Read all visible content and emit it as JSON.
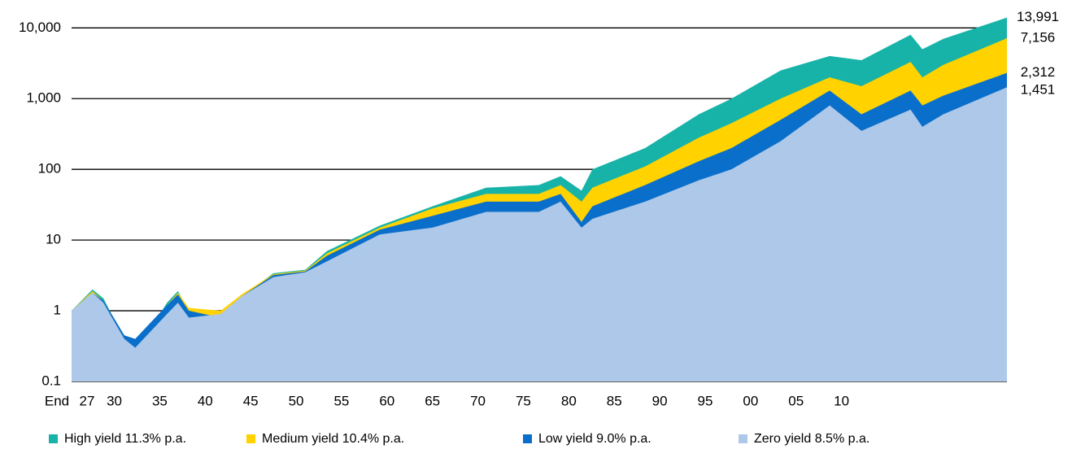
{
  "chart_data": {
    "type": "area",
    "log_y": true,
    "grid": true,
    "x_prefix": "End",
    "x": [
      1925.3,
      1927.6,
      1928.8,
      1931.1,
      1932.3,
      1935.8,
      1937.0,
      1938.2,
      1941.7,
      1944.0,
      1947.5,
      1951.0,
      1953.4,
      1959.2,
      1965.0,
      1970.9,
      1976.7,
      1979.1,
      1981.4,
      1982.6,
      1988.4,
      1994.3,
      1997.9,
      2003.3,
      2008.7,
      2012.2,
      2017.6,
      2018.9,
      2021.2,
      2028.2
    ],
    "xlim": [
      1925.3,
      2028.2
    ],
    "xticks": [
      {
        "value": 1927,
        "label": "27"
      },
      {
        "value": 1930,
        "label": "30"
      },
      {
        "value": 1935,
        "label": "35"
      },
      {
        "value": 1940,
        "label": "40"
      },
      {
        "value": 1945,
        "label": "45"
      },
      {
        "value": 1950,
        "label": "50"
      },
      {
        "value": 1955,
        "label": "55"
      },
      {
        "value": 1960,
        "label": "60"
      },
      {
        "value": 1965,
        "label": "65"
      },
      {
        "value": 1970,
        "label": "70"
      },
      {
        "value": 1975,
        "label": "75"
      },
      {
        "value": 1980,
        "label": "80"
      },
      {
        "value": 1985,
        "label": "85"
      },
      {
        "value": 1990,
        "label": "90"
      },
      {
        "value": 1995,
        "label": "95"
      },
      {
        "value": 2000,
        "label": "00"
      },
      {
        "value": 2005,
        "label": "05"
      },
      {
        "value": 2010,
        "label": "10"
      }
    ],
    "ylim": [
      0.1,
      15000
    ],
    "yticks": [
      0.1,
      1,
      10,
      100,
      {
        "value": 1000,
        "label": "1,000"
      },
      {
        "value": 10000,
        "label": "10,000"
      }
    ],
    "series": [
      {
        "name": "High yield 11.3% p.a.",
        "color": "#17b3a8",
        "end_label": "13,991",
        "values": [
          1,
          2,
          1.5,
          0.4,
          0.25,
          1.3,
          1.9,
          1.0,
          0.9,
          1.6,
          3.4,
          3.8,
          7,
          16,
          30,
          55,
          60,
          80,
          50,
          100,
          200,
          600,
          1000,
          2500,
          4000,
          3500,
          8000,
          5000,
          7000,
          13991
        ]
      },
      {
        "name": "Medium yield 10.4% p.a.",
        "color": "#ffd200",
        "end_label": "7,156",
        "values": [
          1,
          1.9,
          1.4,
          0.45,
          0.35,
          1.2,
          1.8,
          1.1,
          1.0,
          1.7,
          3.3,
          3.7,
          6.5,
          15,
          28,
          45,
          45,
          60,
          35,
          55,
          110,
          280,
          450,
          1000,
          2000,
          1500,
          3300,
          2000,
          3000,
          7156
        ]
      },
      {
        "name": "Low yield  9.0% p.a.",
        "color": "#0a6fcb",
        "end_label": "2,312",
        "values": [
          1,
          1.8,
          1.4,
          0.45,
          0.4,
          1.2,
          1.7,
          1.0,
          0.8,
          1.6,
          3.2,
          3.6,
          6,
          14,
          22,
          35,
          35,
          45,
          18,
          30,
          60,
          130,
          200,
          500,
          1300,
          600,
          1300,
          800,
          1100,
          2312
        ]
      },
      {
        "name": "Zero yield  8.5% p.a.",
        "color": "#adc8e8",
        "end_label": "1,451",
        "values": [
          1,
          1.8,
          1.3,
          0.4,
          0.3,
          0.9,
          1.3,
          0.8,
          0.9,
          1.6,
          3,
          3.5,
          5,
          12,
          15,
          25,
          25,
          35,
          15,
          20,
          35,
          70,
          100,
          250,
          800,
          350,
          700,
          400,
          600,
          1451
        ]
      }
    ]
  }
}
